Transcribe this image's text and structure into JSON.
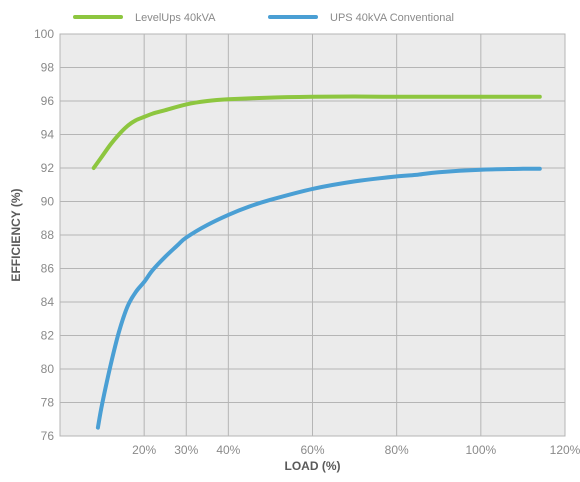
{
  "chart_data": {
    "type": "line",
    "title": "",
    "xlabel": "LOAD (%)",
    "ylabel": "EFFICIENCY (%)",
    "xlim": [
      0,
      120
    ],
    "ylim": [
      76,
      100
    ],
    "x_ticks": [
      20,
      30,
      40,
      60,
      80,
      100,
      120
    ],
    "x_tick_labels": [
      "20%",
      "30%",
      "40%",
      "60%",
      "80%",
      "100%",
      "120%"
    ],
    "y_ticks": [
      76,
      78,
      80,
      82,
      84,
      86,
      88,
      90,
      92,
      94,
      96,
      98,
      100
    ],
    "y_tick_labels": [
      "76",
      "78",
      "80",
      "82",
      "84",
      "86",
      "88",
      "90",
      "92",
      "94",
      "96",
      "98",
      "100"
    ],
    "grid": true,
    "legend_position": "top-left",
    "background_color": "#ebebeb",
    "grid_color": "#b5b5b5",
    "series": [
      {
        "name": "LevelUps  40kVA",
        "color": "#8dc63f",
        "x": [
          8,
          10,
          12,
          14,
          16,
          18,
          20,
          22,
          25,
          30,
          35,
          40,
          50,
          60,
          70,
          80,
          90,
          100,
          110,
          114
        ],
        "y": [
          92.0,
          92.7,
          93.4,
          94.0,
          94.5,
          94.85,
          95.05,
          95.25,
          95.45,
          95.8,
          96.0,
          96.1,
          96.2,
          96.25,
          96.27,
          96.25,
          96.25,
          96.25,
          96.25,
          96.25
        ]
      },
      {
        "name": "UPS 40kVA Conventional",
        "color": "#4a9fd4",
        "x": [
          9,
          10,
          12,
          14,
          16,
          18,
          20,
          22,
          25,
          28,
          30,
          35,
          40,
          45,
          50,
          60,
          70,
          80,
          85,
          90,
          100,
          110,
          114
        ],
        "y": [
          76.5,
          77.9,
          80.2,
          82.2,
          83.7,
          84.6,
          85.2,
          85.9,
          86.7,
          87.4,
          87.85,
          88.6,
          89.2,
          89.7,
          90.1,
          90.75,
          91.2,
          91.5,
          91.6,
          91.75,
          91.9,
          91.95,
          91.95
        ]
      }
    ]
  }
}
